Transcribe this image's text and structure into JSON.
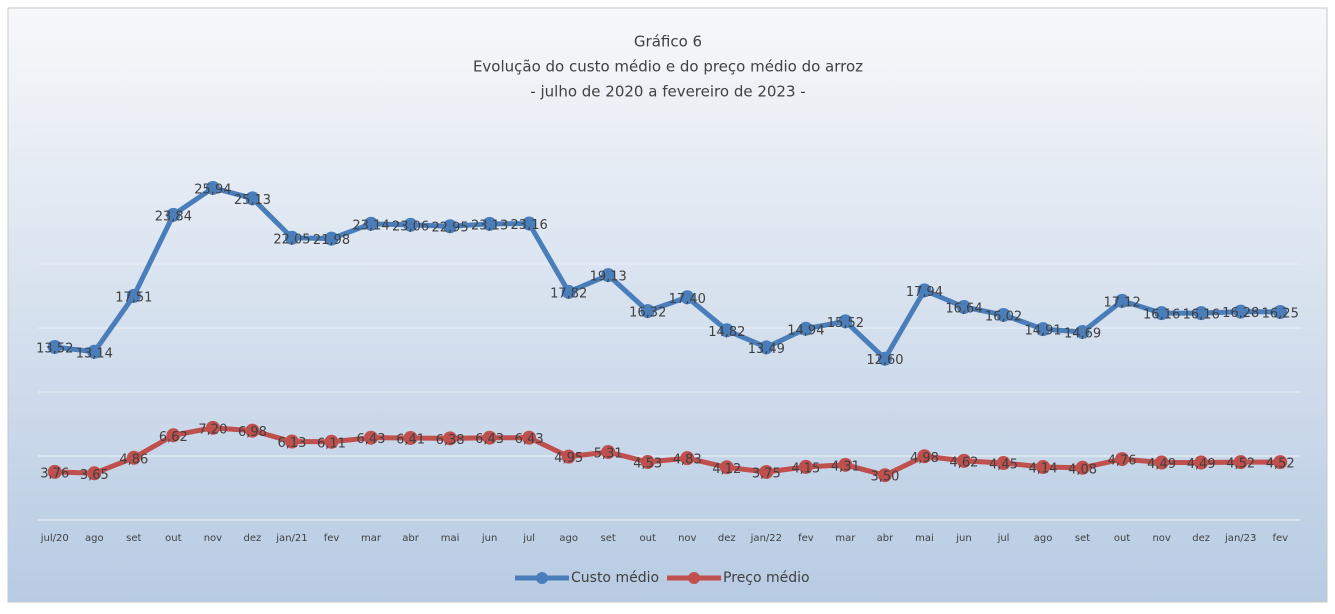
{
  "chart_data": {
    "type": "line",
    "title": "Gráfico 6",
    "subtitle": [
      "Evolução do custo médio e do preço médio do arroz",
      "- julho de 2020 a fevereiro de 2023 -"
    ],
    "categories": [
      "jul/20",
      "ago",
      "set",
      "out",
      "nov",
      "dez",
      "jan/21",
      "fev",
      "mar",
      "abr",
      "mai",
      "jun",
      "jul",
      "ago",
      "set",
      "out",
      "nov",
      "dez",
      "jan/22",
      "fev",
      "mar",
      "abr",
      "mai",
      "jun",
      "jul",
      "ago",
      "set",
      "out",
      "nov",
      "dez",
      "jan/23",
      "fev"
    ],
    "series": [
      {
        "name": "Custo médio",
        "color": "#4a7ebb",
        "values": [
          13.52,
          13.14,
          17.51,
          23.84,
          25.94,
          25.13,
          22.05,
          21.98,
          23.14,
          23.06,
          22.95,
          23.13,
          23.16,
          17.82,
          19.13,
          16.32,
          17.4,
          14.82,
          13.49,
          14.94,
          15.52,
          12.6,
          17.94,
          16.64,
          16.02,
          14.91,
          14.69,
          17.12,
          16.16,
          16.16,
          16.28,
          16.25
        ],
        "value_labels": [
          "13,52",
          "13,14",
          "17,51",
          "23,84",
          "25,94",
          "25,13",
          "22,05",
          "21,98",
          "23,14",
          "23,06",
          "22,95",
          "23,13",
          "23,16",
          "17,82",
          "19,13",
          "16,32",
          "17,40",
          "14,82",
          "13,49",
          "14,94",
          "15,52",
          "12,60",
          "17,94",
          "16,64",
          "16,02",
          "14,91",
          "14,69",
          "17,12",
          "16,16",
          "16,16",
          "16,28",
          "16,25"
        ]
      },
      {
        "name": "Preço médio",
        "color": "#c0504d",
        "values": [
          3.76,
          3.65,
          4.86,
          6.62,
          7.2,
          6.98,
          6.13,
          6.11,
          6.43,
          6.41,
          6.38,
          6.43,
          6.43,
          4.95,
          5.31,
          4.53,
          4.83,
          4.12,
          3.75,
          4.15,
          4.31,
          3.5,
          4.98,
          4.62,
          4.45,
          4.14,
          4.08,
          4.76,
          4.49,
          4.49,
          4.52,
          4.52
        ],
        "value_labels": [
          "3,76",
          "3,65",
          "4,86",
          "6,62",
          "7,20",
          "6,98",
          "6,13",
          "6,11",
          "6,43",
          "6,41",
          "6,38",
          "6,43",
          "6,43",
          "4,95",
          "5,31",
          "4,53",
          "4,83",
          "4,12",
          "3,75",
          "4,15",
          "4,31",
          "3,50",
          "4,98",
          "4,62",
          "4,45",
          "4,14",
          "4,08",
          "4,76",
          "4,49",
          "4,49",
          "4,52",
          "4,52"
        ]
      }
    ],
    "ylim": [
      0,
      30
    ],
    "yticks": [
      0,
      5,
      10,
      15,
      20,
      25,
      30
    ],
    "grid": true,
    "legend": "bottom"
  }
}
